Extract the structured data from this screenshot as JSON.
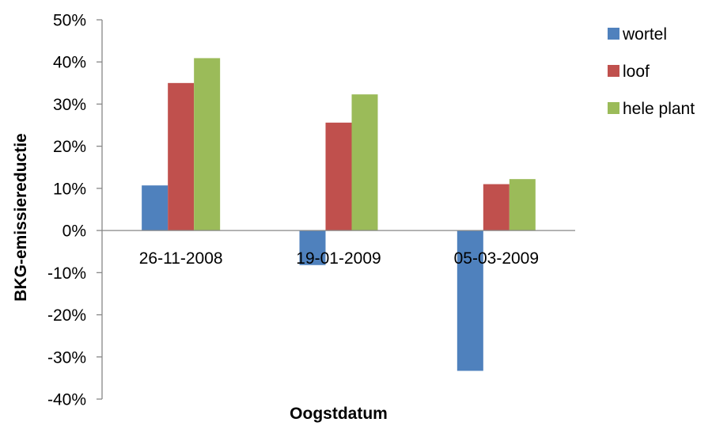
{
  "chart_data": {
    "type": "bar",
    "categories": [
      "26-11-2008",
      "19-01-2009",
      "05-03-2009"
    ],
    "series": [
      {
        "name": "wortel",
        "values": [
          10.7,
          -8.2,
          -33.3
        ],
        "color": "#4F81BD"
      },
      {
        "name": "loof",
        "values": [
          35.0,
          25.6,
          11.0
        ],
        "color": "#C0504D"
      },
      {
        "name": "hele plant",
        "values": [
          40.9,
          32.3,
          12.2
        ],
        "color": "#9BBB59"
      }
    ],
    "ylim": [
      -40,
      50
    ],
    "yticks": [
      "50%",
      "40%",
      "30%",
      "20%",
      "10%",
      "0%",
      "-10%",
      "-20%",
      "-30%",
      "-40%"
    ],
    "xlabel": "Oogstdatum",
    "ylabel": "BKG-emissiereductie",
    "legend_position": "right",
    "grid": false
  }
}
